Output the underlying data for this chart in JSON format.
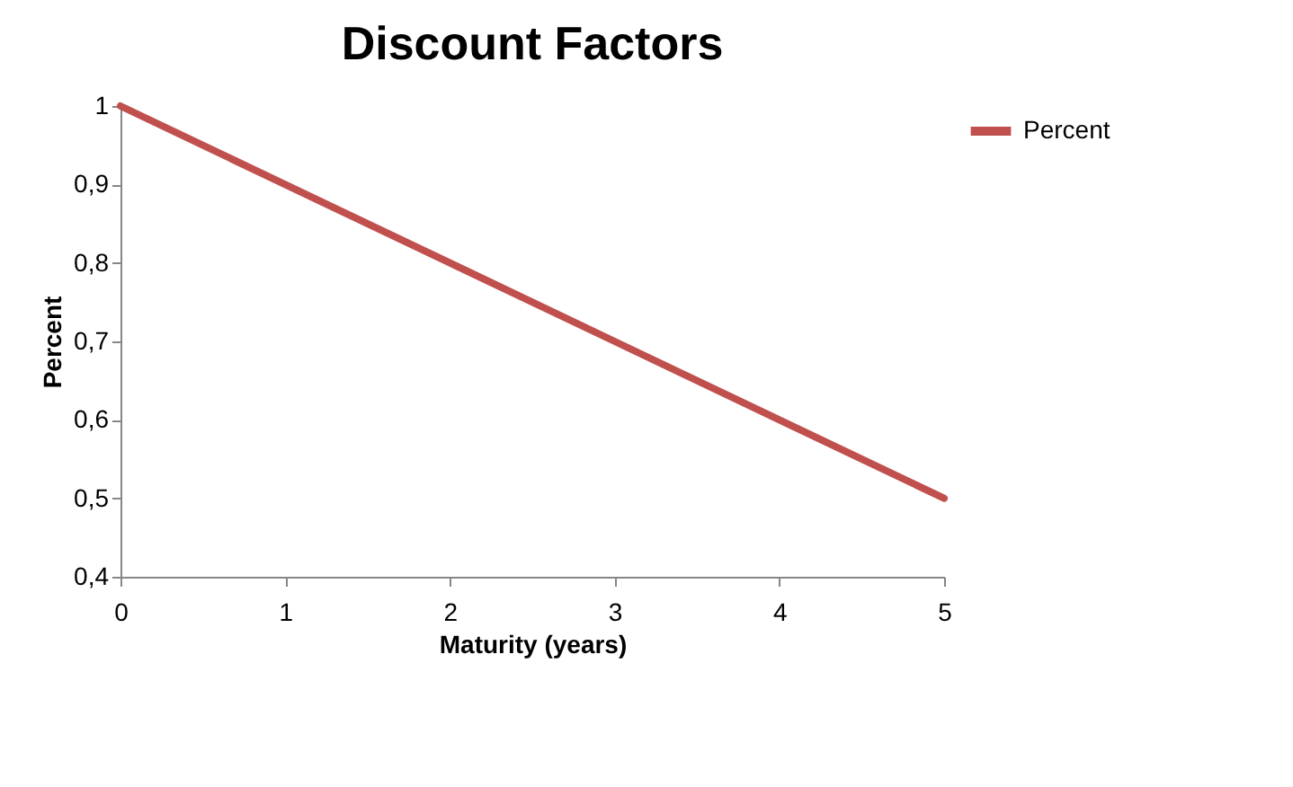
{
  "chart_data": {
    "type": "line",
    "title": "Discount Factors",
    "xlabel": "Maturity (years)",
    "ylabel": "Percent",
    "categories": [
      "0",
      "1",
      "2",
      "3",
      "4",
      "5"
    ],
    "series": [
      {
        "name": "Percent",
        "color": "#c0504d",
        "values": [
          1,
          0.9,
          0.8,
          0.7,
          0.6,
          0.5
        ]
      }
    ],
    "ylim": [
      0.4,
      1
    ],
    "yticks": [
      {
        "value": 0.4,
        "label": "0,4"
      },
      {
        "value": 0.5,
        "label": "0,5"
      },
      {
        "value": 0.6,
        "label": "0,6"
      },
      {
        "value": 0.7,
        "label": "0,7"
      },
      {
        "value": 0.8,
        "label": "0,8"
      },
      {
        "value": 0.9,
        "label": "0,9"
      },
      1
    ],
    "grid": false,
    "legend": "right",
    "marker": "none",
    "line_style": "solid"
  }
}
